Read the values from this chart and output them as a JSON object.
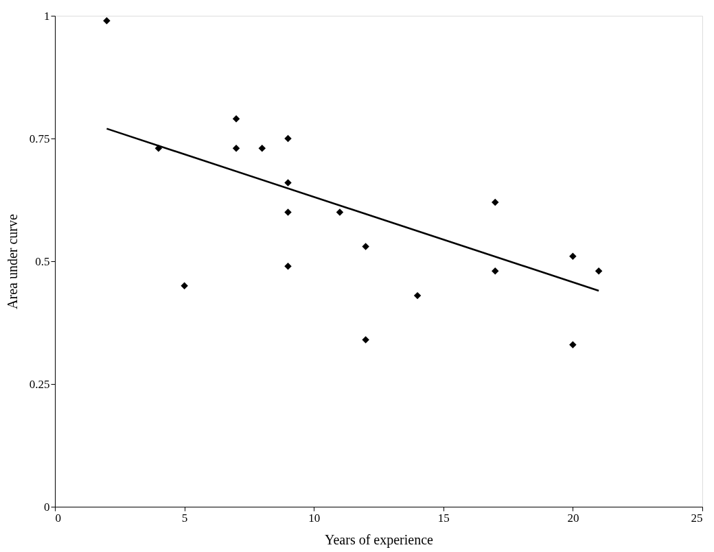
{
  "chart_data": {
    "type": "scatter",
    "xlabel": "Years of experience",
    "ylabel": "Area under curve",
    "xlim": [
      0,
      25
    ],
    "xticks": [
      0,
      5,
      10,
      15,
      20,
      25
    ],
    "ylim": [
      0,
      1
    ],
    "yticks": [
      0,
      0.25,
      0.5,
      0.75,
      1
    ],
    "grid": false,
    "series": [
      {
        "color": "#000000",
        "marker": "diamond",
        "x": [
          2,
          4,
          5,
          7,
          7,
          8,
          9,
          9,
          9,
          9,
          11,
          12,
          12,
          14,
          17,
          17,
          20,
          20,
          21
        ],
        "values": [
          0.99,
          0.73,
          0.45,
          0.79,
          0.73,
          0.73,
          0.75,
          0.66,
          0.6,
          0.49,
          0.6,
          0.53,
          0.34,
          0.43,
          0.62,
          0.48,
          0.51,
          0.33,
          0.48
        ]
      },
      {
        "type": "line",
        "color": "#000000",
        "line_style": "solid",
        "marker": "none",
        "x": [
          2,
          21
        ],
        "values": [
          0.77,
          0.44
        ]
      }
    ]
  }
}
